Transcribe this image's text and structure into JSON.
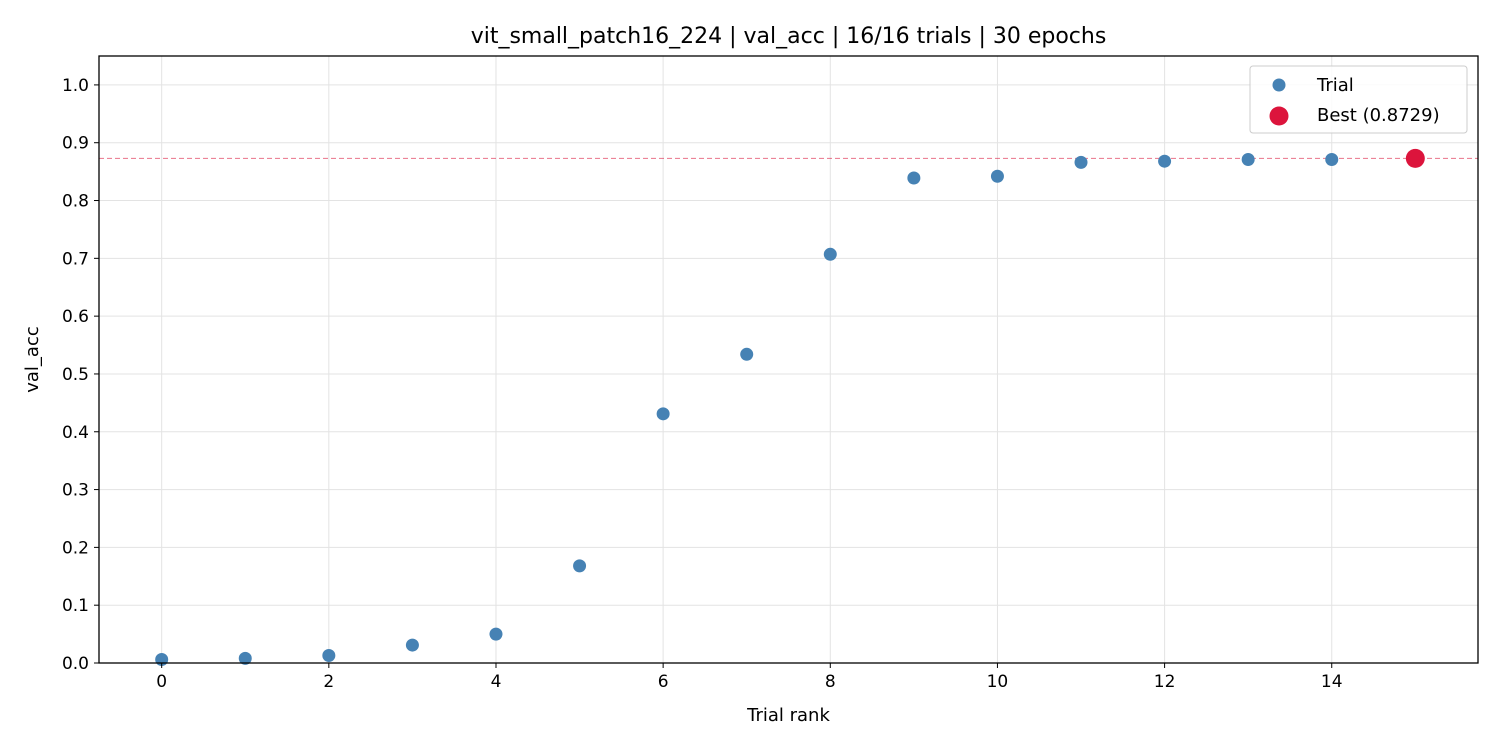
{
  "chart_data": {
    "type": "scatter",
    "title": "vit_small_patch16_224  |  val_acc  |  16/16 trials  |  30 epochs",
    "xlabel": "Trial rank",
    "ylabel": "val_acc",
    "xlim": [
      -0.75,
      15.75
    ],
    "ylim": [
      0.0,
      1.05
    ],
    "xticks": [
      0,
      2,
      4,
      6,
      8,
      10,
      12,
      14
    ],
    "yticks": [
      0.0,
      0.1,
      0.2,
      0.3,
      0.4,
      0.5,
      0.6,
      0.7,
      0.8,
      0.9,
      1.0
    ],
    "grid": true,
    "legend_position": "top-right",
    "series": [
      {
        "name": "Trial",
        "color": "#4682b4",
        "x": [
          0,
          1,
          2,
          3,
          4,
          5,
          6,
          7,
          8,
          9,
          10,
          11,
          12,
          13,
          14
        ],
        "y": [
          0.006,
          0.008,
          0.013,
          0.031,
          0.05,
          0.168,
          0.431,
          0.534,
          0.707,
          0.839,
          0.842,
          0.866,
          0.868,
          0.871,
          0.871
        ]
      },
      {
        "name": "Best (0.8729)",
        "color": "#dc143c",
        "x": [
          15
        ],
        "y": [
          0.8729
        ]
      }
    ],
    "reference_line": {
      "y": 0.8729,
      "style": "dashed",
      "color": "#dc143c"
    }
  }
}
